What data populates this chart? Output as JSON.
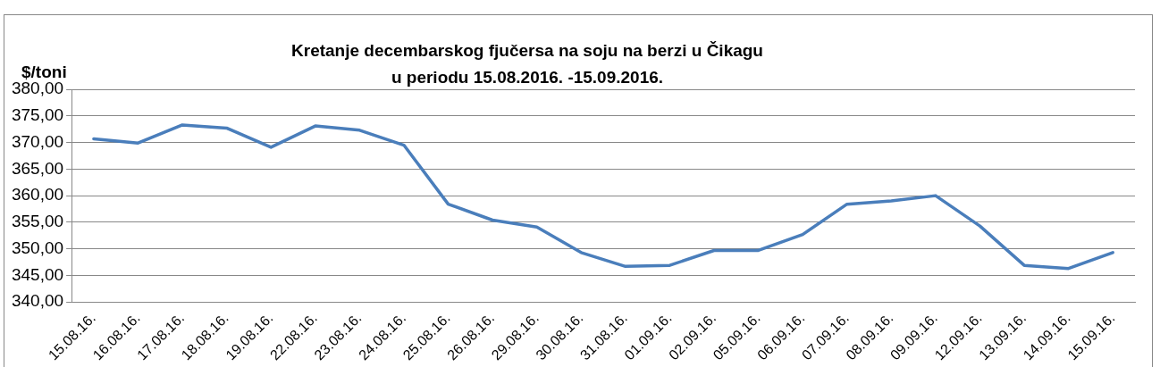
{
  "chart_data": {
    "type": "line",
    "title": "Kretanje decembarskog fjučersa na soju na berzi u Čikagu\nu periodu 15.08.2016. -15.09.2016.",
    "ylabel": "$/toni",
    "categories": [
      "15.08.16.",
      "16.08.16.",
      "17.08.16.",
      "18.08.16.",
      "19.08.16.",
      "22.08.16.",
      "23.08.16.",
      "24.08.16.",
      "25.08.16.",
      "26.08.16.",
      "29.08.16.",
      "30.08.16.",
      "31.08.16.",
      "01.09.16.",
      "02.09.16.",
      "05.09.16.",
      "06.09.16.",
      "07.09.16.",
      "08.09.16.",
      "09.09.16.",
      "12.09.16.",
      "13.09.16.",
      "14.09.16.",
      "15.09.16."
    ],
    "series": [
      {
        "color": "#4a7ebb",
        "values": [
          370.7,
          369.9,
          373.3,
          372.7,
          369.1,
          373.1,
          372.3,
          369.5,
          358.4,
          355.4,
          354.1,
          349.3,
          346.7,
          346.9,
          349.7,
          349.7,
          352.7,
          358.4,
          359.0,
          360.0,
          354.3,
          346.9,
          346.3,
          349.3
        ]
      }
    ],
    "ylim": [
      340,
      380
    ],
    "yticks": [
      {
        "value": 340,
        "label": "340,00"
      },
      {
        "value": 345,
        "label": "345,00"
      },
      {
        "value": 350,
        "label": "350,00"
      },
      {
        "value": 355,
        "label": "355,00"
      },
      {
        "value": 360,
        "label": "360,00"
      },
      {
        "value": 365,
        "label": "365,00"
      },
      {
        "value": 370,
        "label": "370,00"
      },
      {
        "value": 375,
        "label": "375,00"
      },
      {
        "value": 380,
        "label": "380,00"
      }
    ],
    "grid": "y",
    "legend": false,
    "marker": "none",
    "line_style": "solid"
  }
}
